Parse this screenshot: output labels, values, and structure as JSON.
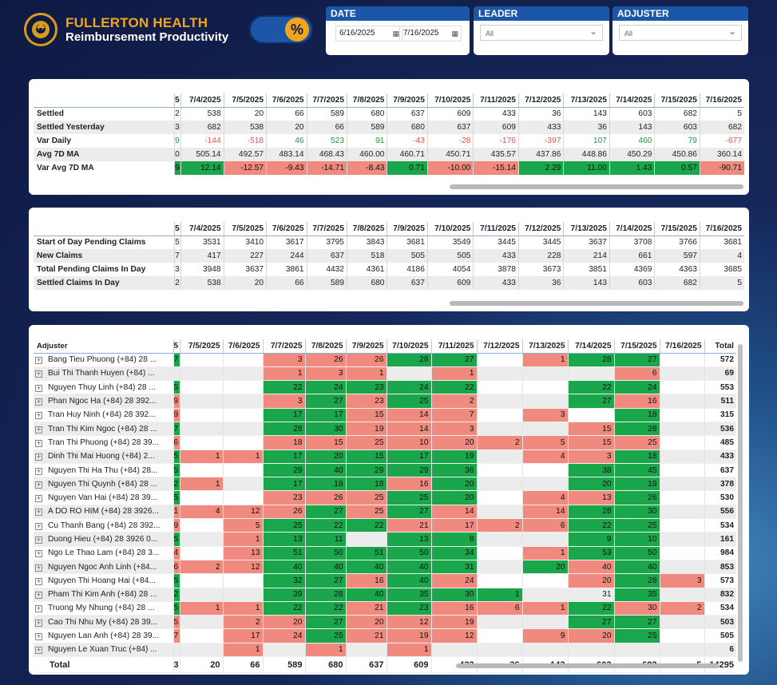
{
  "header": {
    "brand_line1": "FULLERTON HEALTH",
    "brand_line2": "Reimbursement Productivity",
    "toggle_label": "%",
    "accent_color": "#f0a51c",
    "primary_color": "#1b56a8"
  },
  "filters": {
    "date": {
      "title": "DATE",
      "start": "6/16/2025",
      "end": "7/16/2025"
    },
    "leader": {
      "title": "LEADER",
      "value": "All"
    },
    "adjuster": {
      "title": "ADJUSTER",
      "value": "All"
    }
  },
  "settled_table": {
    "columns": [
      "5",
      "7/4/2025",
      "7/5/2025",
      "7/6/2025",
      "7/7/2025",
      "7/8/2025",
      "7/9/2025",
      "7/10/2025",
      "7/11/2025",
      "7/12/2025",
      "7/13/2025",
      "7/14/2025",
      "7/15/2025",
      "7/16/2025"
    ],
    "rows": [
      {
        "label": "Settled",
        "values": [
          "2",
          "538",
          "20",
          "66",
          "589",
          "680",
          "637",
          "609",
          "433",
          "36",
          "143",
          "603",
          "682",
          "5"
        ],
        "styles": []
      },
      {
        "label": "Settled Yesterday",
        "values": [
          "3",
          "682",
          "538",
          "20",
          "66",
          "589",
          "680",
          "637",
          "609",
          "433",
          "36",
          "143",
          "603",
          "682"
        ],
        "styles": []
      },
      {
        "label": "Var Daily",
        "values": [
          "9",
          "-144",
          "-518",
          "46",
          "523",
          "91",
          "-43",
          "-28",
          "-176",
          "-397",
          "107",
          "460",
          "79",
          "-677"
        ],
        "styles": [
          "pos",
          "neg",
          "neg",
          "pos",
          "pos",
          "pos",
          "neg",
          "neg",
          "neg",
          "neg",
          "pos",
          "pos",
          "pos",
          "neg"
        ]
      },
      {
        "label": "Avg 7D MA",
        "values": [
          "0",
          "505.14",
          "492.57",
          "483.14",
          "468.43",
          "460.00",
          "460.71",
          "450.71",
          "435.57",
          "437.86",
          "448.86",
          "450.29",
          "450.86",
          "360.14"
        ],
        "styles": []
      },
      {
        "label": "Var Avg 7D MA",
        "values": [
          "9",
          "12.14",
          "-12.57",
          "-9.43",
          "-14.71",
          "-8.43",
          "0.71",
          "-10.00",
          "-15.14",
          "2.29",
          "11.00",
          "1.43",
          "0.57",
          "-90.71"
        ],
        "styles": [
          "gr",
          "gr",
          "rd",
          "rd",
          "rd",
          "rd",
          "gr",
          "rd",
          "rd",
          "gr",
          "gr",
          "gr",
          "gr",
          "rd"
        ]
      }
    ]
  },
  "pending_table": {
    "columns": [
      "5",
      "7/4/2025",
      "7/5/2025",
      "7/6/2025",
      "7/7/2025",
      "7/8/2025",
      "7/9/2025",
      "7/10/2025",
      "7/11/2025",
      "7/12/2025",
      "7/13/2025",
      "7/14/2025",
      "7/15/2025",
      "7/16/2025"
    ],
    "rows": [
      {
        "label": "Start of Day Pending Claims",
        "values": [
          "5",
          "3531",
          "3410",
          "3617",
          "3795",
          "3843",
          "3681",
          "3549",
          "3445",
          "3445",
          "3637",
          "3708",
          "3766",
          "3681"
        ]
      },
      {
        "label": "New Claims",
        "values": [
          "7",
          "417",
          "227",
          "244",
          "637",
          "518",
          "505",
          "505",
          "433",
          "228",
          "214",
          "661",
          "597",
          "4"
        ]
      },
      {
        "label": "Total Pending Claims In Day",
        "values": [
          "3",
          "3948",
          "3637",
          "3861",
          "4432",
          "4361",
          "4186",
          "4054",
          "3878",
          "3673",
          "3851",
          "4369",
          "4363",
          "3685"
        ]
      },
      {
        "label": "Settled Claims In Day",
        "values": [
          "2",
          "538",
          "20",
          "66",
          "589",
          "680",
          "637",
          "609",
          "433",
          "36",
          "143",
          "603",
          "682",
          "5"
        ]
      }
    ]
  },
  "adjuster_table": {
    "header_label": "Adjuster",
    "columns": [
      "5",
      "7/5/2025",
      "7/6/2025",
      "7/7/2025",
      "7/8/2025",
      "7/9/2025",
      "7/10/2025",
      "7/11/2025",
      "7/12/2025",
      "7/13/2025",
      "7/14/2025",
      "7/15/2025",
      "7/16/2025",
      "Total"
    ],
    "rows": [
      {
        "name": "Bang Tieu Phuong (+84) 28 ...",
        "v": [
          "7",
          "",
          "",
          "3",
          "26",
          "26",
          "28",
          "27",
          "",
          "1",
          "28",
          "27",
          "",
          "572"
        ],
        "s": "gnnrrrgggrgg"
      },
      {
        "name": "Bui Thi Thanh Huyen (+84) ...",
        "v": [
          "",
          "",
          "",
          "1",
          "3",
          "1",
          "",
          "1",
          "",
          "",
          "",
          "6",
          "",
          "69"
        ],
        "s": "nnnrrrnrnnnr"
      },
      {
        "name": "Nguyen Thuy Linh (+84) 28 ...",
        "v": [
          "5",
          "",
          "",
          "22",
          "24",
          "23",
          "24",
          "22",
          "",
          "",
          "22",
          "24",
          "",
          "553"
        ],
        "s": "gnngggggnngg"
      },
      {
        "name": "Phan Ngoc Ha (+84) 28 392...",
        "v": [
          "9",
          "",
          "",
          "3",
          "27",
          "23",
          "25",
          "2",
          "",
          "",
          "27",
          "16",
          "",
          "511"
        ],
        "s": "rnnrgrgrnngr"
      },
      {
        "name": "Tran Huy Ninh (+84) 28 392...",
        "v": [
          "9",
          "",
          "",
          "17",
          "17",
          "15",
          "14",
          "7",
          "",
          "3",
          "",
          "18",
          "",
          "315"
        ],
        "s": "rnnggrrrnrng"
      },
      {
        "name": "Tran Thi Kim Ngoc (+84) 28 ...",
        "v": [
          "7",
          "",
          "",
          "28",
          "30",
          "19",
          "14",
          "3",
          "",
          "",
          "15",
          "28",
          "",
          "536"
        ],
        "s": "gnnggrrrnnrg"
      },
      {
        "name": "Tran Thi Phuong (+84) 28 39...",
        "v": [
          "6",
          "",
          "",
          "18",
          "15",
          "25",
          "10",
          "20",
          "2",
          "5",
          "15",
          "25",
          "",
          "485"
        ],
        "s": "rnnrrrrrrrrr"
      },
      {
        "name": "Dinh Thi Mai Huong (+84) 2...",
        "v": [
          "5",
          "1",
          "1",
          "17",
          "20",
          "15",
          "17",
          "19",
          "",
          "4",
          "3",
          "18",
          "",
          "433"
        ],
        "s": "grrgggggnrrg"
      },
      {
        "name": "Nguyen Thi Ha Thu (+84) 28...",
        "v": [
          "5",
          "",
          "",
          "29",
          "40",
          "29",
          "29",
          "36",
          "",
          "",
          "38",
          "45",
          "",
          "637"
        ],
        "s": "gnnggggggngg"
      },
      {
        "name": "Nguyen Thi Quynh (+84) 28 ...",
        "v": [
          "2",
          "1",
          "",
          "17",
          "18",
          "18",
          "16",
          "20",
          "",
          "",
          "20",
          "19",
          "",
          "378"
        ],
        "s": "grngggrgnngg"
      },
      {
        "name": "Nguyen Van Hai (+84) 28 39...",
        "v": [
          "5",
          "",
          "",
          "23",
          "26",
          "25",
          "25",
          "20",
          "",
          "4",
          "13",
          "26",
          "",
          "530"
        ],
        "s": "gnnrrrggnrrg"
      },
      {
        "name": "A DO RO HIM (+84) 28 3926...",
        "v": [
          "1",
          "4",
          "12",
          "26",
          "27",
          "25",
          "27",
          "14",
          "",
          "14",
          "28",
          "30",
          "",
          "556"
        ],
        "s": "rrrrgrgrnrgg"
      },
      {
        "name": "Cu Thanh Bang (+84) 28 392...",
        "v": [
          "9",
          "",
          "5",
          "25",
          "22",
          "22",
          "21",
          "17",
          "2",
          "6",
          "22",
          "25",
          "",
          "534"
        ],
        "s": "rnrgggrrrrgg"
      },
      {
        "name": "Duong Hieu (+84) 28 3926 0...",
        "v": [
          "5",
          "",
          "1",
          "13",
          "11",
          "",
          "13",
          "8",
          "",
          "",
          "9",
          "10",
          "",
          "161"
        ],
        "s": "gnrggnggnngg"
      },
      {
        "name": "Ngo Le Thao Lam (+84) 28 3...",
        "v": [
          "4",
          "",
          "13",
          "51",
          "50",
          "51",
          "50",
          "34",
          "",
          "1",
          "53",
          "50",
          "",
          "984"
        ],
        "s": "rnrgggggnrgg"
      },
      {
        "name": "Nguyen Ngoc Anh Linh (+84...",
        "v": [
          "6",
          "2",
          "12",
          "40",
          "40",
          "40",
          "40",
          "31",
          "",
          "20",
          "40",
          "40",
          "",
          "853"
        ],
        "s": "rrrgggggngrg"
      },
      {
        "name": "Nguyen Thi Hoang Hai (+84...",
        "v": [
          "5",
          "",
          "",
          "32",
          "27",
          "16",
          "40",
          "24",
          "",
          "",
          "20",
          "28",
          "3",
          "573"
        ],
        "s": "gnnggrgrnnrgr"
      },
      {
        "name": "Pham Thi Kim Anh (+84) 28 ...",
        "v": [
          "2",
          "",
          "",
          "39",
          "28",
          "40",
          "35",
          "30",
          "1",
          "",
          "31",
          "35",
          "",
          "832"
        ],
        "s": "gnnggggggrngg"
      },
      {
        "name": "Truong My Nhung (+84) 28 ...",
        "v": [
          "5",
          "1",
          "1",
          "22",
          "22",
          "21",
          "23",
          "16",
          "6",
          "1",
          "22",
          "30",
          "2",
          "534"
        ],
        "s": "grrggrgrrrgrr"
      },
      {
        "name": "Cao Thi Nhu My (+84) 28 39...",
        "v": [
          "5",
          "",
          "2",
          "20",
          "27",
          "20",
          "12",
          "19",
          "",
          "",
          "27",
          "27",
          "",
          "503"
        ],
        "s": "rnrrgrrrnngg"
      },
      {
        "name": "Nguyen Lan Anh (+84) 28 39...",
        "v": [
          "7",
          "",
          "17",
          "24",
          "25",
          "21",
          "19",
          "12",
          "",
          "9",
          "20",
          "25",
          "",
          "505"
        ],
        "s": "rnrrgrrrnrrg"
      },
      {
        "name": "Nguyen Le Xuan Truc (+84) ...",
        "v": [
          "",
          "",
          "1",
          "",
          "1",
          "",
          "1",
          "",
          "",
          "",
          "",
          "",
          "",
          "6"
        ],
        "s": "nnrnrnrnnnnnn"
      }
    ],
    "total": {
      "label": "Total",
      "values": [
        "3",
        "20",
        "66",
        "589",
        "680",
        "637",
        "609",
        "433",
        "36",
        "143",
        "603",
        "682",
        "5",
        "14295"
      ]
    }
  }
}
